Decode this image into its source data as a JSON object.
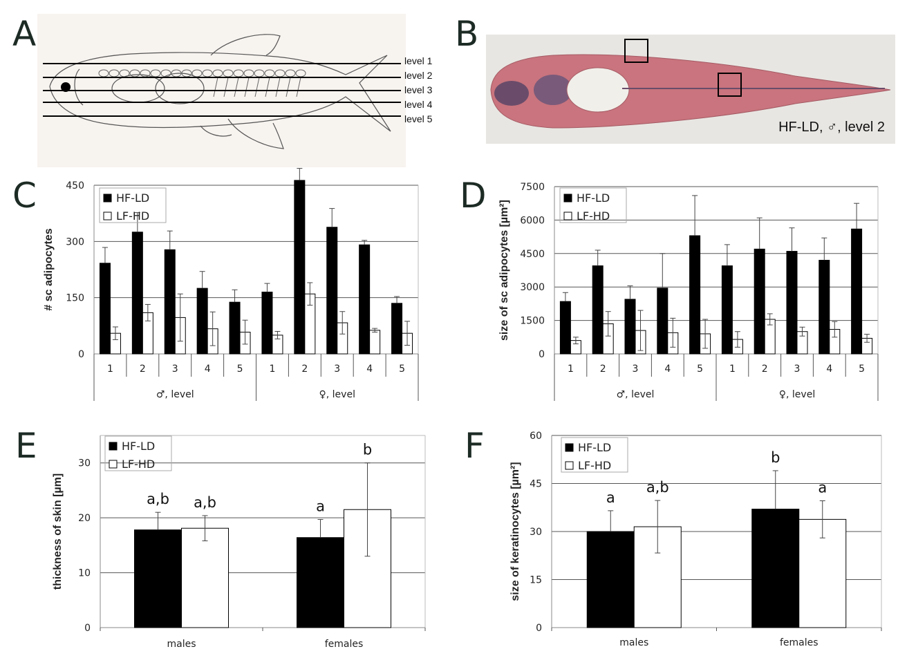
{
  "panels": {
    "A": "A",
    "B": "B",
    "C": "C",
    "D": "D",
    "E": "E",
    "F": "F"
  },
  "fish": {
    "levels": [
      "level 1",
      "level 2",
      "level 3",
      "level 4",
      "level 5"
    ]
  },
  "histology": {
    "caption": "HF-LD, ♂, level 2"
  },
  "colors": {
    "hfld": "#000000",
    "lfhd": "#ffffff",
    "grid": "#555555",
    "fish_bg": "#f7f3ef",
    "tissue": "#c9747e"
  },
  "chart_data": [
    {
      "panel": "C",
      "type": "bar",
      "ylabel": "# sc adipocytes",
      "ylim": [
        0,
        450
      ],
      "yticks": [
        0,
        150,
        300,
        450
      ],
      "categories": [
        "1",
        "2",
        "3",
        "4",
        "5",
        "1",
        "2",
        "3",
        "4",
        "5"
      ],
      "groups": [
        {
          "label": "♂, level",
          "span": 5
        },
        {
          "label": "♀, level",
          "span": 5
        }
      ],
      "legend": [
        "HF-LD",
        "LF-HD"
      ],
      "series": [
        {
          "name": "HF-LD",
          "values": [
            242,
            325,
            278,
            175,
            138,
            165,
            463,
            338,
            291,
            135
          ],
          "err": [
            42,
            52,
            50,
            45,
            33,
            23,
            32,
            50,
            12,
            18
          ]
        },
        {
          "name": "LF-HD",
          "values": [
            55,
            110,
            97,
            67,
            58,
            50,
            160,
            83,
            63,
            55
          ],
          "err": [
            17,
            22,
            63,
            45,
            32,
            10,
            30,
            30,
            5,
            32
          ]
        }
      ]
    },
    {
      "panel": "D",
      "type": "bar",
      "ylabel": "size of sc adipocytes [µm²]",
      "ylim": [
        0,
        7500
      ],
      "yticks": [
        0,
        1500,
        3000,
        4500,
        6000,
        7500
      ],
      "categories": [
        "1",
        "2",
        "3",
        "4",
        "5",
        "1",
        "2",
        "3",
        "4",
        "5"
      ],
      "groups": [
        {
          "label": "♂, level",
          "span": 5
        },
        {
          "label": "♀, level",
          "span": 5
        }
      ],
      "legend": [
        "HF-LD",
        "LF-HD"
      ],
      "series": [
        {
          "name": "HF-LD",
          "values": [
            2350,
            3950,
            2450,
            2950,
            5300,
            3950,
            4700,
            4600,
            4200,
            5600
          ],
          "err": [
            400,
            700,
            600,
            1550,
            1800,
            950,
            1400,
            1050,
            1000,
            1150
          ]
        },
        {
          "name": "LF-HD",
          "values": [
            600,
            1350,
            1050,
            950,
            900,
            650,
            1550,
            1000,
            1100,
            700
          ],
          "err": [
            150,
            550,
            900,
            650,
            650,
            350,
            250,
            200,
            350,
            180
          ]
        }
      ]
    },
    {
      "panel": "E",
      "type": "bar",
      "ylabel": "thickness of skin [µm]",
      "ylim": [
        0,
        35
      ],
      "yticks": [
        0,
        10,
        20,
        30
      ],
      "categories": [
        "males",
        "females"
      ],
      "legend": [
        "HF-LD",
        "LF-HD"
      ],
      "series": [
        {
          "name": "HF-LD",
          "values": [
            17.8,
            16.4
          ],
          "err": [
            3.2,
            3.3
          ],
          "labels": [
            "a,b",
            "a"
          ]
        },
        {
          "name": "LF-HD",
          "values": [
            18.1,
            21.5
          ],
          "err": [
            2.3,
            8.5
          ],
          "labels": [
            "a,b",
            "b"
          ]
        }
      ]
    },
    {
      "panel": "F",
      "type": "bar",
      "ylabel": "size of keratinocytes [µm²]",
      "ylim": [
        0,
        60
      ],
      "yticks": [
        0,
        15,
        30,
        45,
        60
      ],
      "categories": [
        "males",
        "females"
      ],
      "legend": [
        "HF-LD",
        "LF-HD"
      ],
      "series": [
        {
          "name": "HF-LD",
          "values": [
            30,
            37
          ],
          "err": [
            6.5,
            12
          ],
          "labels": [
            "a",
            "b"
          ]
        },
        {
          "name": "LF-HD",
          "values": [
            31.5,
            33.8
          ],
          "err": [
            8.2,
            5.8
          ],
          "labels": [
            "a,b",
            "a"
          ]
        }
      ]
    }
  ]
}
